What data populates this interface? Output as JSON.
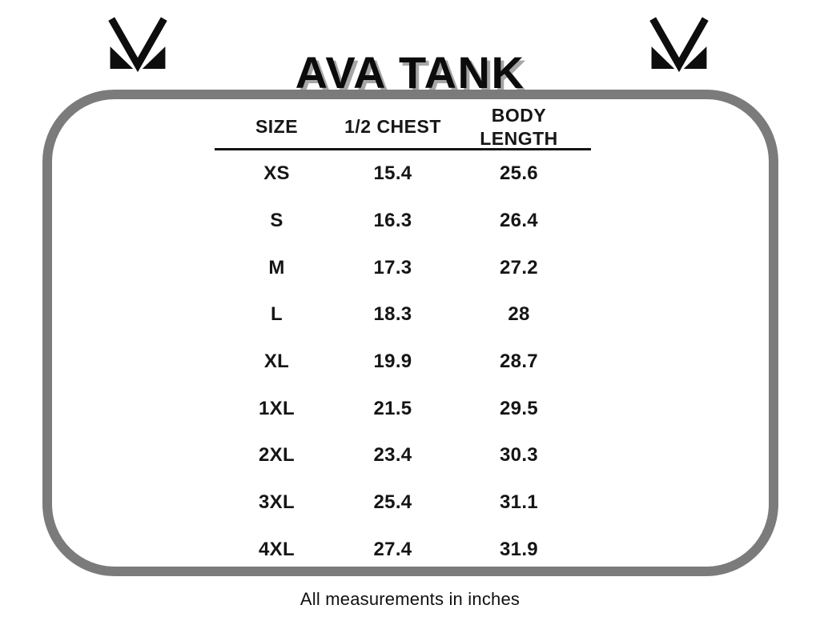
{
  "header": {
    "title": "AVA TANK",
    "logo_icon": "mv-monogram-icon"
  },
  "table": {
    "columns": [
      "SIZE",
      "1/2 CHEST",
      "BODY LENGTH"
    ],
    "rows": [
      {
        "size": "XS",
        "half_chest": "15.4",
        "body_length": "25.6"
      },
      {
        "size": "S",
        "half_chest": "16.3",
        "body_length": "26.4"
      },
      {
        "size": "M",
        "half_chest": "17.3",
        "body_length": "27.2"
      },
      {
        "size": "L",
        "half_chest": "18.3",
        "body_length": "28"
      },
      {
        "size": "XL",
        "half_chest": "19.9",
        "body_length": "28.7"
      },
      {
        "size": "1XL",
        "half_chest": "21.5",
        "body_length": "29.5"
      },
      {
        "size": "2XL",
        "half_chest": "23.4",
        "body_length": "30.3"
      },
      {
        "size": "3XL",
        "half_chest": "25.4",
        "body_length": "31.1"
      },
      {
        "size": "4XL",
        "half_chest": "27.4",
        "body_length": "31.9"
      }
    ]
  },
  "footer_note": "All measurements in inches",
  "colors": {
    "frame_gray": "#7b7b7b",
    "title_shadow_gray": "#a6a6a6",
    "text_black": "#121212"
  }
}
